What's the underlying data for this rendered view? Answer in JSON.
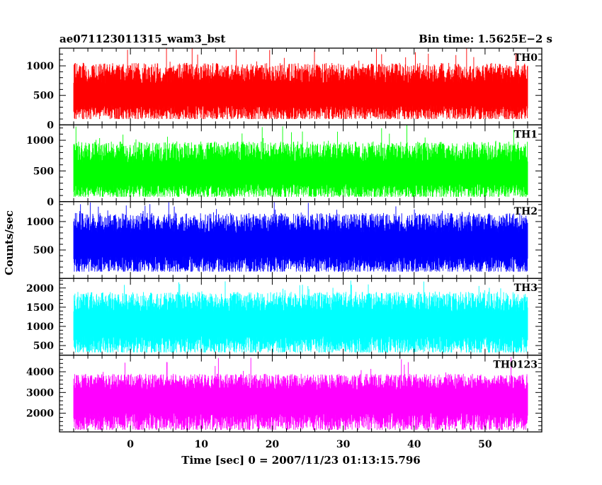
{
  "header": {
    "title": "ae071123011315_wam3_bst",
    "bin_time": "Bin time: 1.5625E−2 s"
  },
  "chart_data": {
    "type": "line",
    "title": "ae071123011315_wam3_bst",
    "xlabel": "Time [sec] 0 = 2007/11/23 01:13:15.796",
    "ylabel": "Counts/sec",
    "x_range": [
      -8,
      56
    ],
    "xlim": [
      -10,
      58
    ],
    "x_ticks": [
      0,
      10,
      20,
      30,
      40,
      50
    ],
    "grid": false,
    "panels": [
      {
        "name": "TH0",
        "color": "#ff0000",
        "ylim": [
          0,
          1300
        ],
        "y_ticks": [
          0,
          500,
          1000
        ],
        "mean": 520,
        "lower": 100,
        "upper_typ": 1050,
        "upper_max": 1300
      },
      {
        "name": "TH1",
        "color": "#00ff00",
        "ylim": [
          0,
          1250
        ],
        "y_ticks": [
          0,
          500,
          1000
        ],
        "mean": 460,
        "lower": 80,
        "upper_typ": 980,
        "upper_max": 1250
      },
      {
        "name": "TH2",
        "color": "#0000ff",
        "ylim": [
          0,
          1350
        ],
        "y_ticks": [
          500,
          1000
        ],
        "mean": 620,
        "lower": 120,
        "upper_typ": 1150,
        "upper_max": 1350
      },
      {
        "name": "TH3",
        "color": "#00ffff",
        "ylim": [
          250,
          2250
        ],
        "y_ticks": [
          500,
          1000,
          1500,
          2000
        ],
        "mean": 1100,
        "lower": 320,
        "upper_typ": 1900,
        "upper_max": 2200
      },
      {
        "name": "TH0123",
        "color": "#ff00ff",
        "ylim": [
          1100,
          4800
        ],
        "y_ticks": [
          2000,
          3000,
          4000
        ],
        "mean": 2700,
        "lower": 1200,
        "upper_typ": 3900,
        "upper_max": 4700
      }
    ]
  }
}
